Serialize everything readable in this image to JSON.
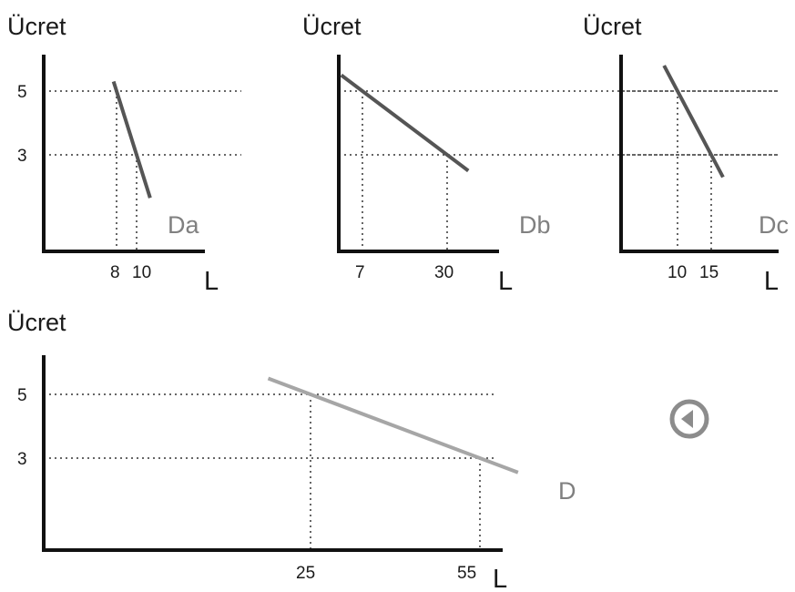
{
  "chart_data": [
    {
      "type": "line",
      "title": "Ücret",
      "xlabel": "L",
      "ylabel": "Ücret",
      "series": [
        {
          "name": "Da",
          "points": [
            {
              "x": 8,
              "y": 5
            },
            {
              "x": 10,
              "y": 3
            }
          ]
        }
      ],
      "x_ticks": [
        "8",
        "10"
      ],
      "y_ticks": [
        "5",
        "3"
      ],
      "guides": [
        {
          "x": 8,
          "y": 5
        },
        {
          "x": 10,
          "y": 3
        }
      ]
    },
    {
      "type": "line",
      "title": "Ücret",
      "xlabel": "L",
      "ylabel": "Ücret",
      "series": [
        {
          "name": "Db",
          "points": [
            {
              "x": 7,
              "y": 5
            },
            {
              "x": 30,
              "y": 3
            }
          ]
        }
      ],
      "x_ticks": [
        "7",
        "30"
      ],
      "y_ticks": [],
      "guides": [
        {
          "x": 7,
          "y": 5
        },
        {
          "x": 30,
          "y": 3
        }
      ]
    },
    {
      "type": "line",
      "title": "Ücret",
      "xlabel": "L",
      "ylabel": "Ücret",
      "series": [
        {
          "name": "Dc",
          "points": [
            {
              "x": 10,
              "y": 5
            },
            {
              "x": 15,
              "y": 3
            }
          ]
        }
      ],
      "x_ticks": [
        "10",
        "15"
      ],
      "y_ticks": [],
      "guides": [
        {
          "x": 10,
          "y": 5
        },
        {
          "x": 15,
          "y": 3
        }
      ]
    },
    {
      "type": "line",
      "title": "Ücret",
      "xlabel": "L",
      "ylabel": "Ücret",
      "series": [
        {
          "name": "D",
          "points": [
            {
              "x": 25,
              "y": 5
            },
            {
              "x": 55,
              "y": 3
            }
          ]
        }
      ],
      "x_ticks": [
        "25",
        "55"
      ],
      "y_ticks": [
        "5",
        "3"
      ],
      "guides": [
        {
          "x": 25,
          "y": 5
        },
        {
          "x": 55,
          "y": 3
        }
      ]
    }
  ],
  "controls": {
    "back_icon": "back-arrow-circle-icon",
    "color": "#8c8c8c"
  }
}
